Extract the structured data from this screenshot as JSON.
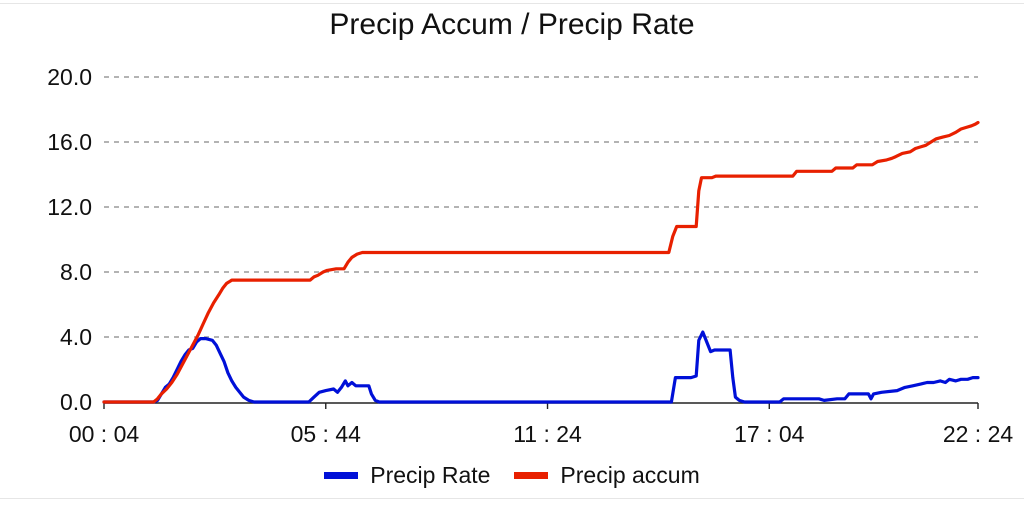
{
  "chart_data": {
    "type": "line",
    "title": "Precip Accum / Precip Rate",
    "xlabel": "",
    "ylabel": "",
    "x_ticks": [
      "00 : 04",
      "05 : 44",
      "11 : 24",
      "17 : 04",
      "22 : 24"
    ],
    "x_tick_minutes": [
      4,
      344,
      684,
      1024,
      1344
    ],
    "x_range_minutes": [
      4,
      1344
    ],
    "ylim": [
      0,
      20
    ],
    "y_ticks": [
      "0.0",
      "4.0",
      "8.0",
      "12.0",
      "16.0",
      "20.0"
    ],
    "y_tick_values": [
      0,
      4,
      8,
      12,
      16,
      20
    ],
    "grid": "horizontal dashed",
    "legend_position": "bottom",
    "series": [
      {
        "name": "Precip Rate",
        "color": "#0010d8",
        "points": [
          [
            4,
            0.0
          ],
          [
            80,
            0.0
          ],
          [
            86,
            0.1
          ],
          [
            92,
            0.5
          ],
          [
            98,
            0.9
          ],
          [
            104,
            1.1
          ],
          [
            110,
            1.5
          ],
          [
            116,
            2.0
          ],
          [
            122,
            2.5
          ],
          [
            128,
            2.9
          ],
          [
            134,
            3.2
          ],
          [
            140,
            3.3
          ],
          [
            146,
            3.7
          ],
          [
            152,
            3.9
          ],
          [
            160,
            3.9
          ],
          [
            170,
            3.8
          ],
          [
            176,
            3.5
          ],
          [
            182,
            3.0
          ],
          [
            188,
            2.5
          ],
          [
            194,
            1.8
          ],
          [
            200,
            1.3
          ],
          [
            206,
            0.9
          ],
          [
            212,
            0.6
          ],
          [
            218,
            0.3
          ],
          [
            226,
            0.1
          ],
          [
            234,
            0.0
          ],
          [
            318,
            0.0
          ],
          [
            326,
            0.3
          ],
          [
            334,
            0.6
          ],
          [
            344,
            0.7
          ],
          [
            356,
            0.8
          ],
          [
            362,
            0.6
          ],
          [
            368,
            0.9
          ],
          [
            374,
            1.3
          ],
          [
            378,
            1.0
          ],
          [
            384,
            1.2
          ],
          [
            390,
            1.0
          ],
          [
            410,
            1.0
          ],
          [
            414,
            0.5
          ],
          [
            420,
            0.1
          ],
          [
            426,
            0.0
          ],
          [
            874,
            0.0
          ],
          [
            880,
            1.5
          ],
          [
            904,
            1.5
          ],
          [
            912,
            1.6
          ],
          [
            916,
            3.8
          ],
          [
            922,
            4.3
          ],
          [
            928,
            3.7
          ],
          [
            934,
            3.1
          ],
          [
            940,
            3.2
          ],
          [
            964,
            3.2
          ],
          [
            968,
            1.5
          ],
          [
            972,
            0.3
          ],
          [
            978,
            0.1
          ],
          [
            986,
            0.0
          ],
          [
            1040,
            0.0
          ],
          [
            1046,
            0.2
          ],
          [
            1100,
            0.2
          ],
          [
            1108,
            0.1
          ],
          [
            1128,
            0.2
          ],
          [
            1140,
            0.2
          ],
          [
            1146,
            0.5
          ],
          [
            1176,
            0.5
          ],
          [
            1180,
            0.2
          ],
          [
            1184,
            0.5
          ],
          [
            1196,
            0.6
          ],
          [
            1220,
            0.7
          ],
          [
            1232,
            0.9
          ],
          [
            1244,
            1.0
          ],
          [
            1256,
            1.1
          ],
          [
            1266,
            1.2
          ],
          [
            1276,
            1.2
          ],
          [
            1286,
            1.3
          ],
          [
            1294,
            1.2
          ],
          [
            1300,
            1.4
          ],
          [
            1310,
            1.3
          ],
          [
            1318,
            1.4
          ],
          [
            1328,
            1.4
          ],
          [
            1336,
            1.5
          ],
          [
            1344,
            1.5
          ]
        ]
      },
      {
        "name": "Precip accum",
        "color": "#e82000",
        "points": [
          [
            4,
            0.0
          ],
          [
            80,
            0.0
          ],
          [
            86,
            0.2
          ],
          [
            92,
            0.5
          ],
          [
            100,
            0.8
          ],
          [
            108,
            1.2
          ],
          [
            116,
            1.7
          ],
          [
            124,
            2.3
          ],
          [
            132,
            2.9
          ],
          [
            140,
            3.5
          ],
          [
            148,
            4.1
          ],
          [
            156,
            4.8
          ],
          [
            164,
            5.5
          ],
          [
            172,
            6.1
          ],
          [
            180,
            6.6
          ],
          [
            186,
            7.0
          ],
          [
            192,
            7.3
          ],
          [
            196,
            7.4
          ],
          [
            200,
            7.5
          ],
          [
            320,
            7.5
          ],
          [
            326,
            7.7
          ],
          [
            332,
            7.8
          ],
          [
            340,
            8.0
          ],
          [
            346,
            8.1
          ],
          [
            360,
            8.2
          ],
          [
            372,
            8.2
          ],
          [
            378,
            8.6
          ],
          [
            384,
            8.9
          ],
          [
            392,
            9.1
          ],
          [
            400,
            9.2
          ],
          [
            870,
            9.2
          ],
          [
            876,
            10.2
          ],
          [
            882,
            10.8
          ],
          [
            912,
            10.8
          ],
          [
            916,
            13.0
          ],
          [
            920,
            13.8
          ],
          [
            936,
            13.8
          ],
          [
            942,
            13.9
          ],
          [
            1060,
            13.9
          ],
          [
            1066,
            14.2
          ],
          [
            1120,
            14.2
          ],
          [
            1126,
            14.4
          ],
          [
            1152,
            14.4
          ],
          [
            1158,
            14.6
          ],
          [
            1182,
            14.6
          ],
          [
            1190,
            14.8
          ],
          [
            1204,
            14.9
          ],
          [
            1212,
            15.0
          ],
          [
            1218,
            15.1
          ],
          [
            1228,
            15.3
          ],
          [
            1240,
            15.4
          ],
          [
            1248,
            15.6
          ],
          [
            1256,
            15.7
          ],
          [
            1264,
            15.8
          ],
          [
            1272,
            16.0
          ],
          [
            1280,
            16.2
          ],
          [
            1290,
            16.3
          ],
          [
            1300,
            16.4
          ],
          [
            1310,
            16.6
          ],
          [
            1318,
            16.8
          ],
          [
            1326,
            16.9
          ],
          [
            1334,
            17.0
          ],
          [
            1340,
            17.1
          ],
          [
            1344,
            17.2
          ]
        ]
      }
    ]
  }
}
